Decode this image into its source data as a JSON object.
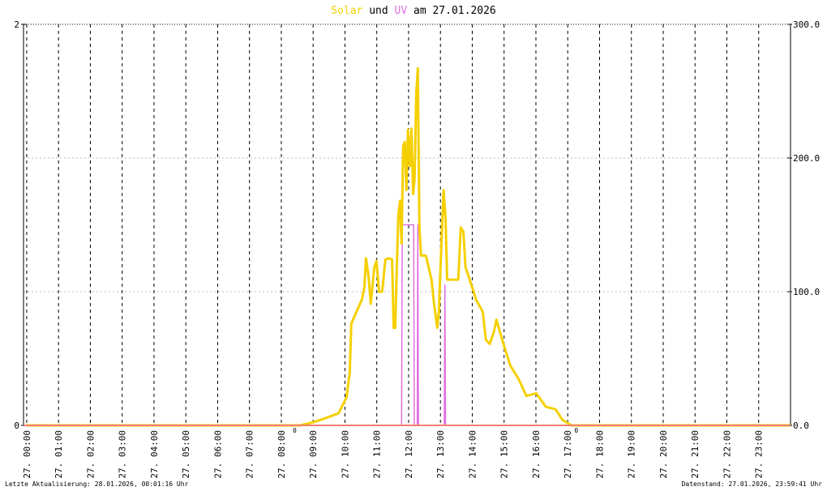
{
  "chart_data": {
    "type": "line",
    "title_words": [
      "und",
      "am 27.01.2026"
    ],
    "xlim": [
      -0.1,
      24
    ],
    "xticks": [
      {
        "value": 0,
        "label": "27. 00:00"
      },
      {
        "value": 1,
        "label": "27. 01:00"
      },
      {
        "value": 2,
        "label": "27. 02:00"
      },
      {
        "value": 3,
        "label": "27. 03:00"
      },
      {
        "value": 4,
        "label": "27. 04:00"
      },
      {
        "value": 5,
        "label": "27. 05:00"
      },
      {
        "value": 6,
        "label": "27. 06:00"
      },
      {
        "value": 7,
        "label": "27. 07:00"
      },
      {
        "value": 8,
        "label": "27. 08:00"
      },
      {
        "value": 9,
        "label": "27. 09:00"
      },
      {
        "value": 10,
        "label": "27. 10:00"
      },
      {
        "value": 11,
        "label": "27. 11:00"
      },
      {
        "value": 12,
        "label": "27. 12:00"
      },
      {
        "value": 13,
        "label": "27. 13:00"
      },
      {
        "value": 14,
        "label": "27. 14:00"
      },
      {
        "value": 15,
        "label": "27. 15:00"
      },
      {
        "value": 16,
        "label": "27. 16:00"
      },
      {
        "value": 17,
        "label": "27. 17:00"
      },
      {
        "value": 18,
        "label": "27. 18:00"
      },
      {
        "value": 19,
        "label": "27. 19:00"
      },
      {
        "value": 20,
        "label": "27. 20:00"
      },
      {
        "value": 21,
        "label": "27. 21:00"
      },
      {
        "value": 22,
        "label": "27. 22:00"
      },
      {
        "value": 23,
        "label": "27. 23:00"
      }
    ],
    "ylim": [
      0,
      2
    ],
    "yticks": [
      0,
      2
    ],
    "y2lim": [
      0,
      300
    ],
    "y2ticks": [
      {
        "value": 0,
        "label": "0.0"
      },
      {
        "value": 100,
        "label": "100.0"
      },
      {
        "value": 200,
        "label": "200.0"
      },
      {
        "value": 300,
        "label": "300.0"
      }
    ],
    "grid": true,
    "series": [
      {
        "name": "Solar",
        "color": "#f5d000",
        "axis": "y2",
        "x": [
          0,
          8.58,
          8.96,
          9.34,
          9.8,
          10.05,
          10.15,
          10.2,
          10.36,
          10.53,
          10.61,
          10.66,
          10.74,
          10.81,
          10.92,
          10.99,
          11.07,
          11.17,
          11.27,
          11.37,
          11.48,
          11.53,
          11.58,
          11.63,
          11.68,
          11.73,
          11.78,
          11.83,
          11.88,
          11.93,
          11.98,
          12.04,
          12.09,
          12.14,
          12.19,
          12.24,
          12.29,
          12.34,
          12.39,
          12.54,
          12.72,
          12.8,
          12.9,
          12.95,
          13.03,
          13.1,
          13.16,
          13.21,
          13.41,
          13.56,
          13.64,
          13.72,
          13.79,
          13.92,
          14.12,
          14.33,
          14.43,
          14.55,
          14.68,
          14.76,
          14.94,
          15.19,
          15.45,
          15.7,
          16.01,
          16.31,
          16.62,
          16.84,
          17.12,
          24
        ],
        "values": [
          0,
          0,
          2,
          5,
          9,
          21,
          39,
          76,
          85,
          94,
          103,
          125,
          112,
          91,
          118,
          123,
          100,
          100,
          124,
          125,
          124,
          73,
          73,
          118,
          158,
          168,
          136,
          209,
          212,
          176,
          221,
          194,
          222,
          173,
          185,
          248,
          267,
          148,
          127,
          127,
          109,
          91,
          73,
          85,
          136,
          176,
          155,
          109,
          109,
          109,
          148,
          145,
          118,
          109,
          94,
          85,
          64,
          61,
          70,
          79,
          64,
          45,
          35,
          22,
          24,
          14,
          12,
          4,
          0,
          0
        ]
      },
      {
        "name": "UV",
        "color": "#e070e0",
        "axis": "y",
        "x": [
          0,
          11.78,
          11.8,
          12.16,
          12.18,
          12.27,
          12.29,
          12.31,
          13.12,
          13.14,
          13.16,
          24
        ],
        "values": [
          0,
          0,
          1,
          1,
          0,
          0,
          1,
          0,
          0,
          0.7,
          0,
          0
        ]
      }
    ],
    "annotations": [
      {
        "x": 8.42,
        "label": "0"
      },
      {
        "x": 17.27,
        "label": "0"
      }
    ],
    "footer_left": "Letzte Aktualisierung: 28.01.2026, 00:01:16 Uhr",
    "footer_right": "Datenstand: 27.01.2026, 23:59:41 Uhr"
  }
}
